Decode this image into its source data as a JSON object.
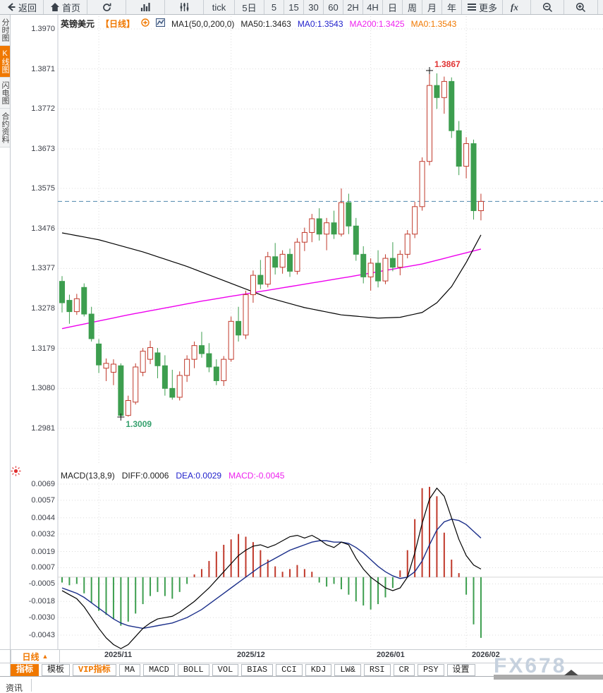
{
  "toolbar": {
    "items": [
      {
        "name": "back-button",
        "label": "返回",
        "icon": "back-icon"
      },
      {
        "name": "home-button",
        "label": "首页",
        "icon": "home-icon"
      },
      {
        "name": "refresh-button",
        "label": "",
        "icon": "refresh-icon"
      },
      {
        "name": "chart-type-button",
        "label": "",
        "icon": "bar-chart-icon"
      },
      {
        "name": "indicator-settings-button",
        "label": "",
        "icon": "sliders-icon"
      },
      {
        "name": "period-tick-button",
        "label": "tick",
        "icon": ""
      },
      {
        "name": "period-5d-button",
        "label": "5日",
        "icon": ""
      },
      {
        "name": "period-5-button",
        "label": "5",
        "icon": ""
      },
      {
        "name": "period-15-button",
        "label": "15",
        "icon": ""
      },
      {
        "name": "period-30-button",
        "label": "30",
        "icon": ""
      },
      {
        "name": "period-60-button",
        "label": "60",
        "icon": ""
      },
      {
        "name": "period-2h-button",
        "label": "2H",
        "icon": ""
      },
      {
        "name": "period-4h-button",
        "label": "4H",
        "icon": ""
      },
      {
        "name": "period-day-button",
        "label": "日",
        "icon": ""
      },
      {
        "name": "period-week-button",
        "label": "周",
        "icon": ""
      },
      {
        "name": "period-month-button",
        "label": "月",
        "icon": ""
      },
      {
        "name": "period-year-button",
        "label": "年",
        "icon": ""
      },
      {
        "name": "more-button",
        "label": "更多",
        "icon": "menu-icon"
      },
      {
        "name": "fx-button",
        "label": "fx",
        "icon": "fx-icon"
      },
      {
        "name": "zoom-out-button",
        "label": "",
        "icon": "zoom-out-icon"
      },
      {
        "name": "zoom-in-button",
        "label": "",
        "icon": "zoom-in-icon"
      }
    ]
  },
  "sidebar": {
    "tabs": [
      {
        "name": "sidebar-tab-time-chart",
        "label": "分时图",
        "active": false
      },
      {
        "name": "sidebar-tab-kline-chart",
        "label": "K线图",
        "active": true
      },
      {
        "name": "sidebar-tab-lightning-chart",
        "label": "闪电图",
        "active": false
      },
      {
        "name": "sidebar-tab-contract-info",
        "label": "合约资料",
        "active": false
      }
    ]
  },
  "chart_header": {
    "symbol": "英镑美元",
    "period": "【日线】",
    "ma_settings": "MA1(50,0,200,0)",
    "ma50": "MA50:1.3463",
    "ma0_blue": "MA0:1.3543",
    "ma200": "MA200:1.3425",
    "ma0_orange": "MA0:1.3543"
  },
  "macd_header": {
    "title": "MACD(13,8,9)",
    "diff": "DIFF:0.0006",
    "dea": "DEA:0.0029",
    "macd": "MACD:-0.0045"
  },
  "bottom": {
    "period_label": "日线",
    "period_arrow": "▲",
    "buttons": [
      {
        "name": "indicator-tab",
        "label": "指标",
        "style": "active"
      },
      {
        "name": "template-tab",
        "label": "模板",
        "style": ""
      },
      {
        "name": "vip-indicator-tab",
        "label": "VIP指标",
        "style": "vip"
      },
      {
        "name": "ma-button",
        "label": "MA",
        "style": ""
      },
      {
        "name": "macd-button",
        "label": "MACD",
        "style": ""
      },
      {
        "name": "boll-button",
        "label": "BOLL",
        "style": ""
      },
      {
        "name": "vol-button",
        "label": "VOL",
        "style": ""
      },
      {
        "name": "bias-button",
        "label": "BIAS",
        "style": ""
      },
      {
        "name": "cci-button",
        "label": "CCI",
        "style": ""
      },
      {
        "name": "kdj-button",
        "label": "KDJ",
        "style": ""
      },
      {
        "name": "lw-button",
        "label": "LW&",
        "style": ""
      },
      {
        "name": "rsi-button",
        "label": "RSI",
        "style": ""
      },
      {
        "name": "cr-button",
        "label": "CR",
        "style": ""
      },
      {
        "name": "psy-button",
        "label": "PSY",
        "style": ""
      },
      {
        "name": "settings-button",
        "label": "设置",
        "style": ""
      }
    ],
    "news_tab": "资讯",
    "watermark": "FX678"
  },
  "colors": {
    "up": "#c0392b",
    "down": "#3d9e4f",
    "ma50": "#000000",
    "ma200": "#ee00ee",
    "diff": "#000000",
    "dea": "#1b2f8a",
    "hist_pos": "#c0392b",
    "hist_neg": "#3d9e4f",
    "price_line": "#4e86ad",
    "accent": "#f07800",
    "high_label": "#e03131",
    "low_label": "#35a06d",
    "grid": "#dcdcdc"
  },
  "chart_data": {
    "type": "candlestick+macd",
    "title": "英镑美元 日线 (GBP/USD Daily)",
    "price_axis_labels": [
      "1.3970",
      "1.3871",
      "1.3772",
      "1.3673",
      "1.3575",
      "1.3476",
      "1.3377",
      "1.3278",
      "1.3179",
      "1.3080",
      "1.2981"
    ],
    "time_axis": {
      "labels": [
        "2025/11",
        "2025/12",
        "2026/01",
        "2026/02"
      ],
      "tick_indices": [
        5,
        23,
        42,
        55
      ],
      "label_lefts": [
        148,
        336,
        534,
        669
      ]
    },
    "current_price": 1.3543,
    "annotations": {
      "high": {
        "value": "1.3867",
        "price": 1.3867,
        "index": 50
      },
      "low": {
        "value": "1.3009",
        "price": 1.3009,
        "index": 8
      }
    },
    "candles": [
      [
        1.3345,
        1.3358,
        1.3268,
        1.3292
      ],
      [
        1.3298,
        1.3312,
        1.324,
        1.327
      ],
      [
        1.327,
        1.3314,
        1.3262,
        1.3302
      ],
      [
        1.333,
        1.334,
        1.3258,
        1.3264
      ],
      [
        1.3264,
        1.3282,
        1.3196,
        1.3203
      ],
      [
        1.319,
        1.3202,
        1.3118,
        1.3138
      ],
      [
        1.313,
        1.3154,
        1.3098,
        1.3142
      ],
      [
        1.312,
        1.3152,
        1.3088,
        1.314
      ],
      [
        1.3136,
        1.3142,
        1.3009,
        1.3013
      ],
      [
        1.3013,
        1.3062,
        1.301,
        1.305
      ],
      [
        1.3046,
        1.3142,
        1.304,
        1.3133
      ],
      [
        1.312,
        1.318,
        1.311,
        1.3172
      ],
      [
        1.3152,
        1.3198,
        1.314,
        1.3181
      ],
      [
        1.3168,
        1.318,
        1.3105,
        1.3136
      ],
      [
        1.3136,
        1.3162,
        1.3062,
        1.308
      ],
      [
        1.308,
        1.3126,
        1.3052,
        1.3058
      ],
      [
        1.3058,
        1.3122,
        1.305,
        1.3112
      ],
      [
        1.3112,
        1.3162,
        1.3096,
        1.3152
      ],
      [
        1.3152,
        1.3196,
        1.313,
        1.3186
      ],
      [
        1.3186,
        1.322,
        1.3156,
        1.3166
      ],
      [
        1.3166,
        1.3192,
        1.312,
        1.3133
      ],
      [
        1.3133,
        1.3152,
        1.3088,
        1.3099
      ],
      [
        1.3099,
        1.316,
        1.3086,
        1.3152
      ],
      [
        1.3152,
        1.3258,
        1.3146,
        1.3246
      ],
      [
        1.3246,
        1.3282,
        1.3196,
        1.3212
      ],
      [
        1.3212,
        1.3322,
        1.3202,
        1.3312
      ],
      [
        1.3312,
        1.3372,
        1.3292,
        1.336
      ],
      [
        1.336,
        1.3398,
        1.3326,
        1.3338
      ],
      [
        1.3338,
        1.3418,
        1.333,
        1.3406
      ],
      [
        1.3406,
        1.344,
        1.3362,
        1.338
      ],
      [
        1.338,
        1.3422,
        1.3364,
        1.3412
      ],
      [
        1.3412,
        1.3426,
        1.3356,
        1.337
      ],
      [
        1.337,
        1.3452,
        1.3362,
        1.3442
      ],
      [
        1.3442,
        1.3478,
        1.342,
        1.3466
      ],
      [
        1.3466,
        1.3512,
        1.3442,
        1.35
      ],
      [
        1.35,
        1.3526,
        1.3446,
        1.3462
      ],
      [
        1.3462,
        1.3502,
        1.3422,
        1.349
      ],
      [
        1.349,
        1.352,
        1.345,
        1.3462
      ],
      [
        1.3462,
        1.3575,
        1.3456,
        1.354
      ],
      [
        1.354,
        1.3562,
        1.3462,
        1.3482
      ],
      [
        1.3482,
        1.3502,
        1.3396,
        1.3412
      ],
      [
        1.3412,
        1.3432,
        1.334,
        1.3356
      ],
      [
        1.3356,
        1.3402,
        1.3322,
        1.339
      ],
      [
        1.339,
        1.3422,
        1.333,
        1.3346
      ],
      [
        1.3346,
        1.3412,
        1.3338,
        1.3402
      ],
      [
        1.3402,
        1.3442,
        1.337,
        1.338
      ],
      [
        1.338,
        1.3422,
        1.336,
        1.3412
      ],
      [
        1.3412,
        1.3472,
        1.3402,
        1.3462
      ],
      [
        1.3462,
        1.3542,
        1.3452,
        1.353
      ],
      [
        1.353,
        1.3652,
        1.352,
        1.3642
      ],
      [
        1.3642,
        1.3867,
        1.3632,
        1.383
      ],
      [
        1.383,
        1.386,
        1.3772,
        1.38
      ],
      [
        1.38,
        1.3852,
        1.376,
        1.384
      ],
      [
        1.384,
        1.385,
        1.37,
        1.3718
      ],
      [
        1.3718,
        1.3742,
        1.3608,
        1.363
      ],
      [
        1.363,
        1.3702,
        1.36,
        1.3686
      ],
      [
        1.3686,
        1.3696,
        1.3498,
        1.352
      ],
      [
        1.352,
        1.3562,
        1.3496,
        1.3543
      ]
    ],
    "ma50_anchors": [
      [
        0,
        1.3465
      ],
      [
        5,
        1.3448
      ],
      [
        11,
        1.3418
      ],
      [
        17,
        1.3382
      ],
      [
        23,
        1.334
      ],
      [
        28,
        1.3305
      ],
      [
        33,
        1.328
      ],
      [
        38,
        1.3262
      ],
      [
        43,
        1.3254
      ],
      [
        46,
        1.3256
      ],
      [
        49,
        1.3268
      ],
      [
        51,
        1.3292
      ],
      [
        53,
        1.3332
      ],
      [
        55,
        1.3392
      ],
      [
        57,
        1.346
      ]
    ],
    "ma200_anchors": [
      [
        0,
        1.3228
      ],
      [
        9,
        1.3262
      ],
      [
        19,
        1.3296
      ],
      [
        29,
        1.3326
      ],
      [
        39,
        1.3356
      ],
      [
        49,
        1.3388
      ],
      [
        57,
        1.3425
      ]
    ],
    "macd": {
      "y_labels": [
        "0.0069",
        "0.0057",
        "0.0044",
        "0.0032",
        "0.0019",
        "0.0007",
        "-0.0005",
        "-0.0018",
        "-0.0030",
        "-0.0043"
      ],
      "histogram": [
        -0.0004,
        -0.0006,
        -0.0005,
        -0.0012,
        -0.0019,
        -0.0025,
        -0.0028,
        -0.0031,
        -0.0036,
        -0.0033,
        -0.0027,
        -0.002,
        -0.0014,
        -0.0011,
        -0.0014,
        -0.0016,
        -0.0011,
        -0.0005,
        0.0002,
        0.0006,
        0.0012,
        0.0019,
        0.0024,
        0.0028,
        0.0032,
        0.003,
        0.0026,
        0.002,
        0.0013,
        0.0008,
        0.0004,
        0.0006,
        0.0009,
        0.0006,
        0.0004,
        -0.0004,
        -0.0007,
        -0.0005,
        -0.0009,
        -0.0013,
        -0.0018,
        -0.0021,
        -0.0024,
        -0.002,
        -0.0015,
        -0.0008,
        0.0005,
        0.002,
        0.0043,
        0.0066,
        0.0067,
        0.006,
        0.0033,
        0.0013,
        0.0003,
        -0.0013,
        -0.0035,
        -0.0045
      ],
      "diff": [
        -0.001,
        -0.0013,
        -0.0016,
        -0.0022,
        -0.003,
        -0.0038,
        -0.0045,
        -0.005,
        -0.0053,
        -0.005,
        -0.0044,
        -0.0038,
        -0.0034,
        -0.0031,
        -0.003,
        -0.0029,
        -0.0026,
        -0.0022,
        -0.0018,
        -0.0013,
        -0.0008,
        -0.0002,
        0.0004,
        0.001,
        0.0016,
        0.002,
        0.0023,
        0.0024,
        0.0022,
        0.0024,
        0.0027,
        0.003,
        0.0031,
        0.0029,
        0.0031,
        0.0028,
        0.0024,
        0.0022,
        0.0026,
        0.0024,
        0.0014,
        0.0006,
        0.0,
        -0.0004,
        -0.0008,
        -0.001,
        -0.0008,
        0.0,
        0.0018,
        0.004,
        0.0058,
        0.0066,
        0.006,
        0.0044,
        0.0028,
        0.0016,
        0.0009,
        0.0006
      ],
      "dea": [
        -0.0008,
        -0.001,
        -0.0012,
        -0.0015,
        -0.0019,
        -0.0023,
        -0.0027,
        -0.0031,
        -0.0034,
        -0.0036,
        -0.0037,
        -0.0038,
        -0.0037,
        -0.0036,
        -0.0035,
        -0.0034,
        -0.0032,
        -0.003,
        -0.0027,
        -0.0024,
        -0.002,
        -0.0016,
        -0.0012,
        -0.0008,
        -0.0004,
        0.0,
        0.0004,
        0.0008,
        0.0011,
        0.0014,
        0.0017,
        0.002,
        0.0022,
        0.0024,
        0.0026,
        0.0027,
        0.0027,
        0.0026,
        0.0026,
        0.0025,
        0.0022,
        0.0018,
        0.0013,
        0.0008,
        0.0004,
        0.0001,
        -0.0001,
        0.0,
        0.0004,
        0.0012,
        0.0024,
        0.0035,
        0.0041,
        0.0043,
        0.0042,
        0.0039,
        0.0034,
        0.0029
      ]
    }
  }
}
